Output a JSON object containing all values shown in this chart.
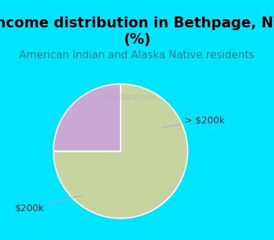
{
  "title": "Income distribution in Bethpage, NY\n(%)",
  "subtitle": "American Indian and Alaska Native residents",
  "slices": [
    75,
    25
  ],
  "labels": [
    "$200k",
    "> $200k"
  ],
  "colors": [
    "#c8d4a0",
    "#c9a8d4"
  ],
  "background_top": "#00e5ff",
  "background_chart": "#ffffff",
  "title_fontsize": 15,
  "subtitle_fontsize": 11,
  "label_fontsize": 10,
  "startangle": 90,
  "watermark": "City-Data.com"
}
